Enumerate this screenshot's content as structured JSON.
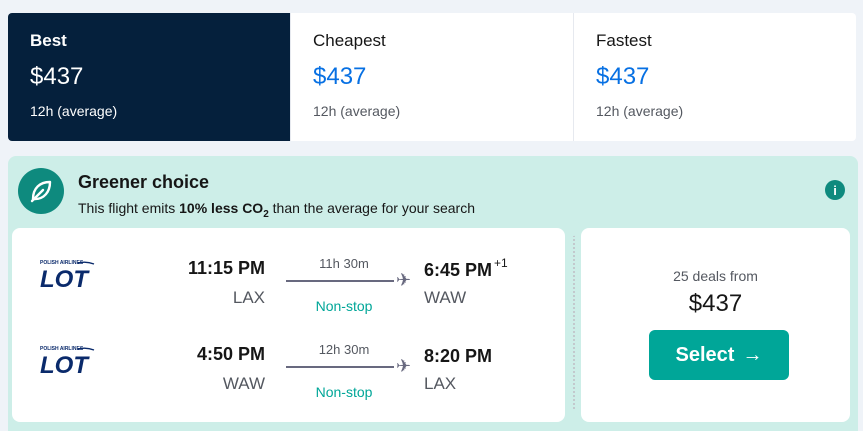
{
  "sort_tabs": [
    {
      "label": "Best",
      "price": "$437",
      "sub": "12h (average)",
      "active": true
    },
    {
      "label": "Cheapest",
      "price": "$437",
      "sub": "12h (average)",
      "active": false
    },
    {
      "label": "Fastest",
      "price": "$437",
      "sub": "12h (average)",
      "active": false
    }
  ],
  "eco": {
    "title": "Greener choice",
    "desc_prefix": "This flight emits ",
    "desc_bold": "10% less CO",
    "desc_sub": "2",
    "desc_suffix": " than the average for your search",
    "info_glyph": "i"
  },
  "legs": [
    {
      "airline": "LOT",
      "airline_tag": "POLISH AIRLINES",
      "dep_time": "11:15 PM",
      "dep_airport": "LAX",
      "duration": "11h 30m",
      "stops": "Non-stop",
      "arr_time": "6:45 PM",
      "arr_offset": "+1",
      "arr_airport": "WAW"
    },
    {
      "airline": "LOT",
      "airline_tag": "POLISH AIRLINES",
      "dep_time": "4:50 PM",
      "dep_airport": "WAW",
      "duration": "12h 30m",
      "stops": "Non-stop",
      "arr_time": "8:20 PM",
      "arr_offset": "",
      "arr_airport": "LAX"
    }
  ],
  "pricing": {
    "deals": "25 deals from",
    "price": "$437",
    "select_label": "Select",
    "select_arrow": "→"
  },
  "colors": {
    "active_tab": "#05203c",
    "accent_blue": "#0770e3",
    "teal": "#00a698",
    "eco_bg": "#cdeee8",
    "lot_navy": "#0a2a6b"
  }
}
